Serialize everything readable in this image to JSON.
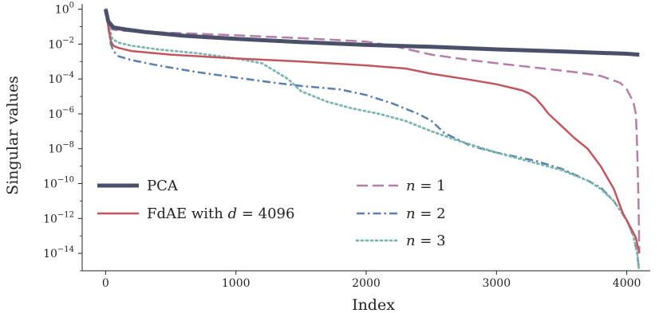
{
  "chart_data": {
    "type": "line",
    "xlabel": "Index",
    "ylabel": "Singular values",
    "y_scale": "log",
    "xlim": [
      -180,
      4180
    ],
    "ylim": [
      1e-15,
      2
    ],
    "x_ticks": [
      0,
      1000,
      2000,
      3000,
      4000
    ],
    "x_tick_labels": [
      "0",
      "1000",
      "2000",
      "3000",
      "4000"
    ],
    "y_ticks": [
      1,
      0.01,
      0.0001,
      1e-06,
      1e-08,
      1e-10,
      1e-12,
      1e-14
    ],
    "y_tick_labels": [
      {
        "base": "10",
        "exp": "0"
      },
      {
        "base": "10",
        "exp": "−2"
      },
      {
        "base": "10",
        "exp": "−4"
      },
      {
        "base": "10",
        "exp": "−6"
      },
      {
        "base": "10",
        "exp": "−8"
      },
      {
        "base": "10",
        "exp": "−10"
      },
      {
        "base": "10",
        "exp": "−12"
      },
      {
        "base": "10",
        "exp": "−14"
      }
    ],
    "grid": false,
    "legend": {
      "placement": "lower-left",
      "columns": 2
    },
    "series": [
      {
        "name": "PCA",
        "color": "#4a5069",
        "style": "solid",
        "width": 5,
        "x": [
          0,
          20,
          60,
          150,
          300,
          600,
          1000,
          1500,
          2000,
          2500,
          3000,
          3500,
          4000,
          4096
        ],
        "y": [
          1.0,
          0.2,
          0.09,
          0.07,
          0.05,
          0.03,
          0.02,
          0.013,
          0.009,
          0.007,
          0.005,
          0.0038,
          0.0028,
          0.0025
        ]
      },
      {
        "name": "FdAE with d = 4096",
        "color": "#c1565e",
        "style": "solid",
        "width": 2.5,
        "x": [
          0,
          20,
          40,
          60,
          100,
          200,
          500,
          1000,
          1500,
          2000,
          2300,
          2500,
          2800,
          3000,
          3200,
          3250,
          3300,
          3350,
          3400,
          3500,
          3600,
          3700,
          3800,
          3900,
          3970,
          4030,
          4070,
          4096
        ],
        "y": [
          1.0,
          0.1,
          0.015,
          0.008,
          0.006,
          0.004,
          0.0025,
          0.0015,
          0.001,
          0.0006,
          0.0004,
          0.0002,
          9e-05,
          5e-05,
          2.2e-05,
          1.5e-05,
          8e-06,
          3e-06,
          1e-06,
          2e-07,
          4e-08,
          1e-08,
          1e-09,
          5e-11,
          2e-12,
          3e-13,
          8e-14,
          1e-14
        ]
      },
      {
        "name": "n = 1",
        "color": "#b47fa6",
        "style": "dashed",
        "width": 2.5,
        "x": [
          0,
          20,
          50,
          100,
          200,
          500,
          1000,
          1500,
          2000,
          2200,
          2500,
          2800,
          3000,
          3300,
          3600,
          3800,
          3950,
          4000,
          4050,
          4070,
          4080,
          4090,
          4096
        ],
        "y": [
          1.0,
          0.15,
          0.07,
          0.06,
          0.055,
          0.045,
          0.032,
          0.022,
          0.014,
          0.008,
          0.0025,
          0.0012,
          0.0008,
          0.00045,
          0.00025,
          0.00015,
          6e-05,
          2.5e-05,
          5e-06,
          1e-06,
          1e-08,
          1e-11,
          1e-14
        ]
      },
      {
        "name": "n = 2",
        "color": "#5a7fad",
        "style": "dashdot",
        "width": 2.5,
        "x": [
          0,
          20,
          40,
          60,
          100,
          200,
          400,
          700,
          1000,
          1300,
          1500,
          1800,
          2000,
          2200,
          2400,
          2500,
          2600,
          2800,
          3000,
          3300,
          3500,
          3700,
          3800,
          3900,
          4000,
          4050,
          4080,
          4090
        ],
        "y": [
          1.0,
          0.1,
          0.01,
          0.004,
          0.002,
          0.0012,
          0.0006,
          0.00025,
          0.00012,
          6e-05,
          4e-05,
          2.5e-05,
          1.2e-05,
          4e-06,
          1e-06,
          4e-07,
          8e-08,
          1.5e-08,
          6e-09,
          2e-09,
          7e-10,
          1.5e-10,
          6e-11,
          1e-11,
          8e-13,
          1e-13,
          1e-14,
          2e-15
        ]
      },
      {
        "name": "n = 3",
        "color": "#7cb6b0",
        "style": "dotted",
        "width": 2.8,
        "x": [
          0,
          20,
          50,
          100,
          200,
          400,
          700,
          1000,
          1200,
          1400,
          1500,
          1700,
          1900,
          2100,
          2300,
          2500,
          2700,
          3000,
          3300,
          3500,
          3700,
          3800,
          3900,
          4000,
          4050,
          4080,
          4095
        ],
        "y": [
          1.0,
          0.15,
          0.02,
          0.012,
          0.008,
          0.005,
          0.003,
          0.0015,
          0.0008,
          0.0001,
          2e-05,
          5e-06,
          2e-06,
          1e-06,
          4e-07,
          1e-07,
          3e-08,
          6e-09,
          1.5e-09,
          6e-10,
          1.5e-10,
          5e-11,
          1e-11,
          8e-13,
          1e-13,
          1e-14,
          1e-15
        ]
      }
    ]
  }
}
